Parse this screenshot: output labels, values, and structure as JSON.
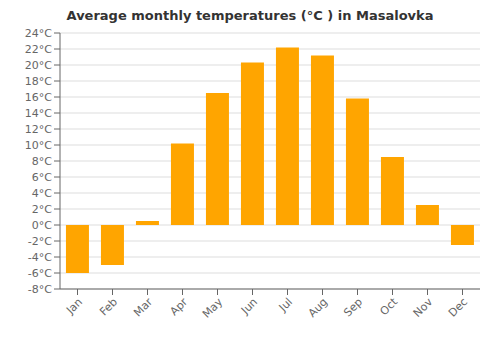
{
  "chart_data": {
    "type": "bar",
    "title": "Average monthly temperatures (°C ) in Masalovka",
    "categories": [
      "Jan",
      "Feb",
      "Mar",
      "Apr",
      "May",
      "Jun",
      "Jul",
      "Aug",
      "Sep",
      "Oct",
      "Nov",
      "Dec"
    ],
    "values": [
      -6,
      -5,
      0.5,
      10.2,
      16.5,
      20.3,
      22.2,
      21.2,
      15.8,
      8.5,
      2.5,
      -2.5
    ],
    "color": "#FFA500",
    "ylim": [
      -8,
      24
    ],
    "yticks": [
      {
        "value": -8,
        "label": "-8°C"
      },
      {
        "value": -6,
        "label": "-6°C"
      },
      {
        "value": -4,
        "label": "-4°C"
      },
      {
        "value": -2,
        "label": "-2°C"
      },
      {
        "value": 0,
        "label": "0°C"
      },
      {
        "value": 2,
        "label": "2°C"
      },
      {
        "value": 4,
        "label": "4°C"
      },
      {
        "value": 6,
        "label": "6°C"
      },
      {
        "value": 8,
        "label": "8°C"
      },
      {
        "value": 10,
        "label": "10°C"
      },
      {
        "value": 12,
        "label": "12°C"
      },
      {
        "value": 14,
        "label": "14°C"
      },
      {
        "value": 16,
        "label": "16°C"
      },
      {
        "value": 18,
        "label": "18°C"
      },
      {
        "value": 20,
        "label": "20°C"
      },
      {
        "value": 22,
        "label": "22°C"
      },
      {
        "value": 24,
        "label": "24°C"
      }
    ],
    "grid": true
  }
}
